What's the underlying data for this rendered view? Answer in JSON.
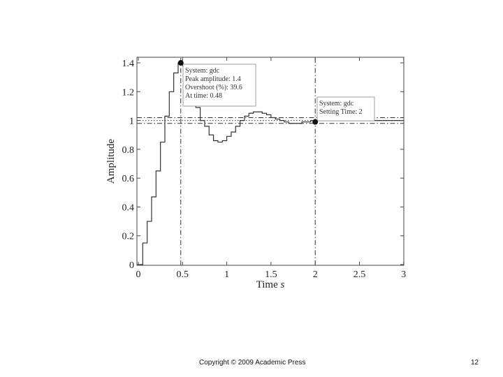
{
  "chart_data": {
    "type": "line",
    "title": "",
    "xlabel": "Time",
    "xlabel_italic": "s",
    "ylabel": "Amplitude",
    "xlim": [
      0,
      3
    ],
    "ylim": [
      0,
      1.45
    ],
    "xticks": [
      "0",
      "0.5",
      "1",
      "1.5",
      "2",
      "2.5",
      "3"
    ],
    "yticks": [
      "0",
      "0.2",
      "0.4",
      "0.6",
      "0.8",
      "1",
      "1.2",
      "1.4"
    ],
    "grid": false,
    "series": [
      {
        "style": "step",
        "color": "#333333",
        "x": [
          0,
          0.05,
          0.1,
          0.15,
          0.2,
          0.25,
          0.3,
          0.35,
          0.4,
          0.45,
          0.5,
          0.55,
          0.6,
          0.65,
          0.7,
          0.75,
          0.8,
          0.85,
          0.9,
          0.95,
          1.0,
          1.05,
          1.1,
          1.15,
          1.2,
          1.25,
          1.3,
          1.35,
          1.4,
          1.45,
          1.5,
          1.55,
          1.6,
          1.65,
          1.7,
          1.75,
          1.8,
          1.85,
          1.9,
          1.95,
          2.0,
          2.05,
          2.1,
          2.15,
          2.2,
          2.25,
          2.3,
          2.35,
          2.4,
          2.45,
          2.5,
          2.55,
          2.6,
          2.65,
          2.7,
          2.75,
          2.8,
          2.85,
          2.9,
          2.95
        ],
        "y": [
          0.0,
          0.15,
          0.3,
          0.47,
          0.65,
          0.85,
          1.03,
          1.2,
          1.33,
          1.4,
          1.38,
          1.3,
          1.2,
          1.09,
          1.0,
          0.96,
          0.9,
          0.86,
          0.85,
          0.86,
          0.89,
          0.92,
          0.96,
          1.0,
          1.03,
          1.05,
          1.06,
          1.06,
          1.05,
          1.04,
          1.02,
          1.01,
          1.0,
          0.99,
          0.98,
          0.98,
          0.98,
          0.99,
          0.99,
          1.0,
          1.0,
          1.0,
          1.0,
          1.0,
          1.0,
          1.0,
          1.0,
          1.0,
          1.0,
          1.0,
          1.0,
          1.0,
          1.0,
          1.0,
          1.0,
          1.0,
          1.0,
          1.0,
          1.0,
          1.0
        ]
      }
    ],
    "reference_lines": [
      {
        "orientation": "horizontal",
        "value": 1.0,
        "style": "dotted"
      },
      {
        "orientation": "horizontal",
        "value": 1.02,
        "style": "dashdot"
      },
      {
        "orientation": "horizontal",
        "value": 0.98,
        "style": "dashdot"
      },
      {
        "orientation": "vertical",
        "value": 0.48,
        "style": "dashdot"
      },
      {
        "orientation": "vertical",
        "value": 2.0,
        "style": "dashdot"
      }
    ],
    "markers": [
      {
        "x": 0.48,
        "y": 1.4
      },
      {
        "x": 2.0,
        "y": 0.99
      }
    ],
    "annotations": [
      {
        "anchor_x": 0.48,
        "lines": [
          "System: gdc",
          "Peak amplitude: 1.4",
          "Overshoot (%): 39.6",
          "At time: 0.48"
        ]
      },
      {
        "anchor_x": 2.0,
        "lines": [
          "System: gdc",
          "Setting Time: 2"
        ]
      }
    ]
  },
  "footer": {
    "copyright": "Copyright © 2009 Academic Press",
    "page_number": "12"
  }
}
